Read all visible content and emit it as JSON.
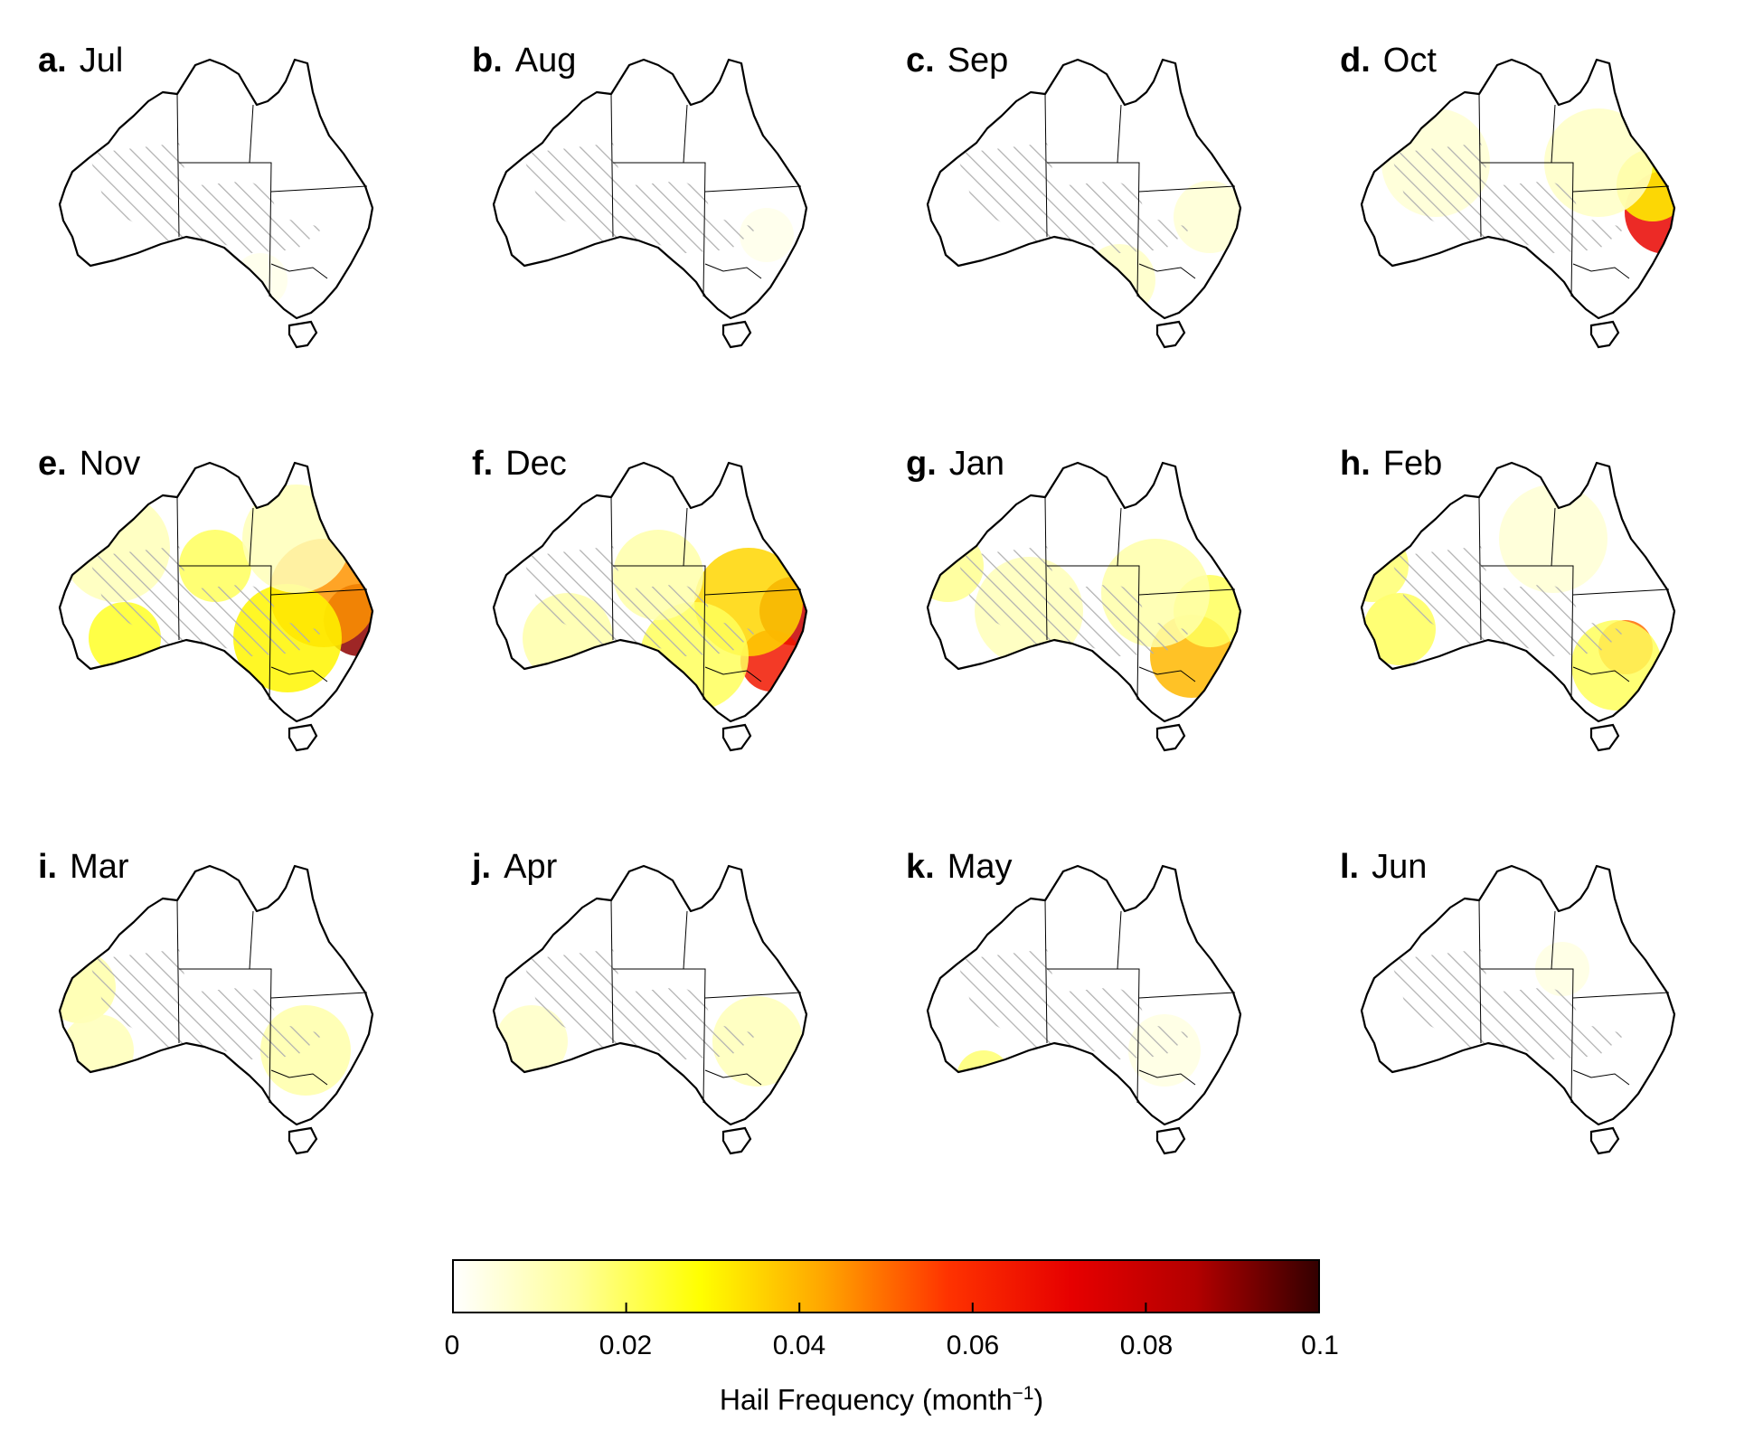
{
  "panels": [
    {
      "letter": "a.",
      "month": "Jul"
    },
    {
      "letter": "b.",
      "month": "Aug"
    },
    {
      "letter": "c.",
      "month": "Sep"
    },
    {
      "letter": "d.",
      "month": "Oct"
    },
    {
      "letter": "e.",
      "month": "Nov"
    },
    {
      "letter": "f.",
      "month": "Dec"
    },
    {
      "letter": "g.",
      "month": "Jan"
    },
    {
      "letter": "h.",
      "month": "Feb"
    },
    {
      "letter": "i.",
      "month": "Mar"
    },
    {
      "letter": "j.",
      "month": "Apr"
    },
    {
      "letter": "k.",
      "month": "May"
    },
    {
      "letter": "l.",
      "month": "Jun"
    }
  ],
  "colorbar": {
    "min": 0,
    "max": 0.1,
    "ticks": [
      "0",
      "0.02",
      "0.04",
      "0.06",
      "0.08",
      "0.1"
    ],
    "label": "Hail Frequency (month",
    "label_exponent": "−1",
    "label_close": ")",
    "colors": [
      "#ffffff",
      "#ffff99",
      "#ffff00",
      "#ffa500",
      "#ff3300",
      "#e60000",
      "#b30000",
      "#330000"
    ]
  },
  "hatch_color": "#b0b0b0",
  "outline_color": "#000000"
}
